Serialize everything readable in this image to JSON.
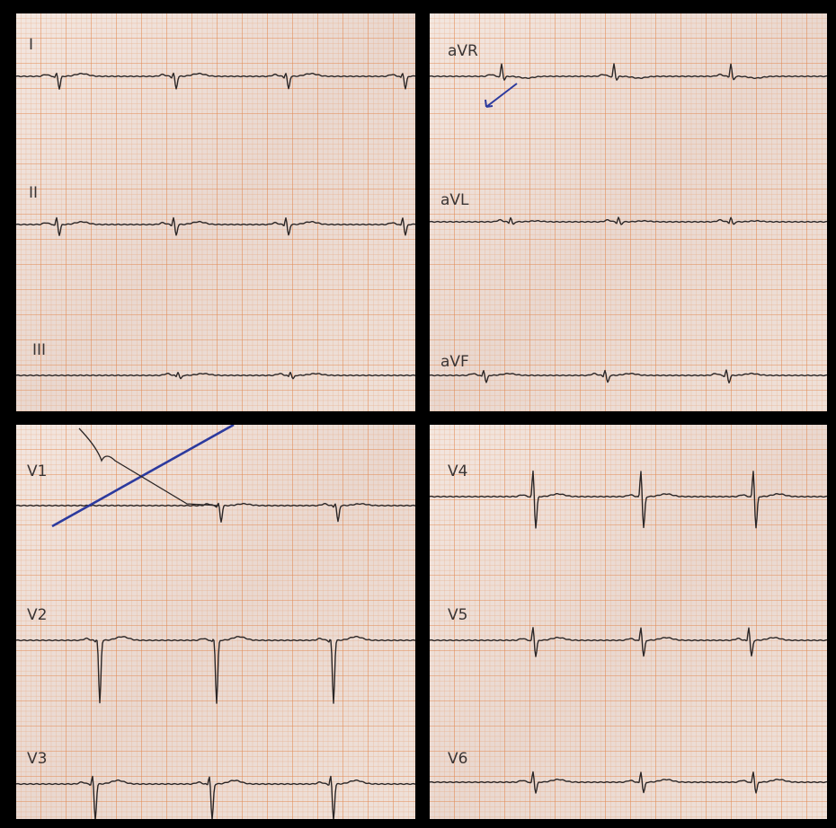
{
  "panels": [
    {
      "leads": [
        "I",
        "II",
        "III"
      ]
    },
    {
      "leads": [
        "aVR",
        "aVL",
        "aVF"
      ]
    },
    {
      "leads": [
        "V1",
        "V2",
        "V3"
      ]
    },
    {
      "leads": [
        "V4",
        "V5",
        "V6"
      ]
    }
  ]
}
